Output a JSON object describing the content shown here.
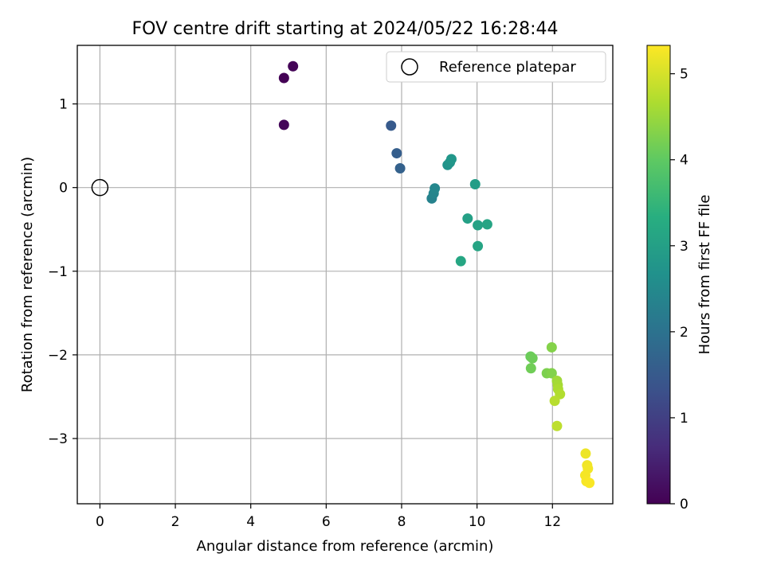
{
  "chart_data": {
    "type": "scatter",
    "title": "FOV centre drift starting at 2024/05/22 16:28:44",
    "xlabel": "Angular distance from reference (arcmin)",
    "ylabel": "Rotation from reference (arcmin)",
    "xlim": [
      -0.6,
      13.6
    ],
    "ylim": [
      -3.78,
      1.7
    ],
    "xticks": [
      0,
      2,
      4,
      6,
      8,
      10,
      12
    ],
    "yticks": [
      -3,
      -2,
      -1,
      0,
      1
    ],
    "grid": true,
    "legend": {
      "position": "top-right",
      "entries": [
        "Reference platepar"
      ]
    },
    "reference_point": {
      "x": 0,
      "y": 0,
      "label": "Reference platepar"
    },
    "colorbar": {
      "label": "Hours from first FF file",
      "range": [
        0,
        5.33
      ],
      "ticks": [
        0,
        1,
        2,
        3,
        4,
        5
      ],
      "colormap": "viridis"
    },
    "points": [
      {
        "x": 4.88,
        "y": 1.31,
        "t": 0.02
      },
      {
        "x": 5.12,
        "y": 1.45,
        "t": 0.05
      },
      {
        "x": 4.88,
        "y": 0.75,
        "t": 0.08
      },
      {
        "x": 7.72,
        "y": 0.74,
        "t": 1.5
      },
      {
        "x": 7.87,
        "y": 0.41,
        "t": 1.58
      },
      {
        "x": 7.96,
        "y": 0.23,
        "t": 1.65
      },
      {
        "x": 8.8,
        "y": -0.13,
        "t": 2.35
      },
      {
        "x": 8.85,
        "y": -0.07,
        "t": 2.4
      },
      {
        "x": 8.88,
        "y": -0.01,
        "t": 2.45
      },
      {
        "x": 9.22,
        "y": 0.27,
        "t": 2.7
      },
      {
        "x": 9.28,
        "y": 0.3,
        "t": 2.75
      },
      {
        "x": 9.32,
        "y": 0.34,
        "t": 2.8
      },
      {
        "x": 9.95,
        "y": 0.04,
        "t": 2.95
      },
      {
        "x": 9.75,
        "y": -0.37,
        "t": 3.0
      },
      {
        "x": 10.02,
        "y": -0.45,
        "t": 3.05
      },
      {
        "x": 10.27,
        "y": -0.44,
        "t": 3.1
      },
      {
        "x": 10.02,
        "y": -0.7,
        "t": 3.1
      },
      {
        "x": 9.57,
        "y": -0.88,
        "t": 3.15
      },
      {
        "x": 11.42,
        "y": -2.02,
        "t": 4.1
      },
      {
        "x": 11.47,
        "y": -2.04,
        "t": 4.12
      },
      {
        "x": 11.43,
        "y": -2.16,
        "t": 4.15
      },
      {
        "x": 11.85,
        "y": -2.22,
        "t": 4.25
      },
      {
        "x": 11.98,
        "y": -2.22,
        "t": 4.3
      },
      {
        "x": 11.98,
        "y": -1.91,
        "t": 4.32
      },
      {
        "x": 12.12,
        "y": -2.31,
        "t": 4.55
      },
      {
        "x": 12.14,
        "y": -2.36,
        "t": 4.6
      },
      {
        "x": 12.15,
        "y": -2.41,
        "t": 4.65
      },
      {
        "x": 12.2,
        "y": -2.47,
        "t": 4.7
      },
      {
        "x": 12.06,
        "y": -2.55,
        "t": 4.75
      },
      {
        "x": 12.12,
        "y": -2.85,
        "t": 4.8
      },
      {
        "x": 12.88,
        "y": -3.18,
        "t": 5.2
      },
      {
        "x": 12.92,
        "y": -3.32,
        "t": 5.22
      },
      {
        "x": 12.94,
        "y": -3.36,
        "t": 5.24
      },
      {
        "x": 12.87,
        "y": -3.44,
        "t": 5.26
      },
      {
        "x": 12.9,
        "y": -3.51,
        "t": 5.28
      },
      {
        "x": 12.98,
        "y": -3.53,
        "t": 5.3
      }
    ]
  }
}
